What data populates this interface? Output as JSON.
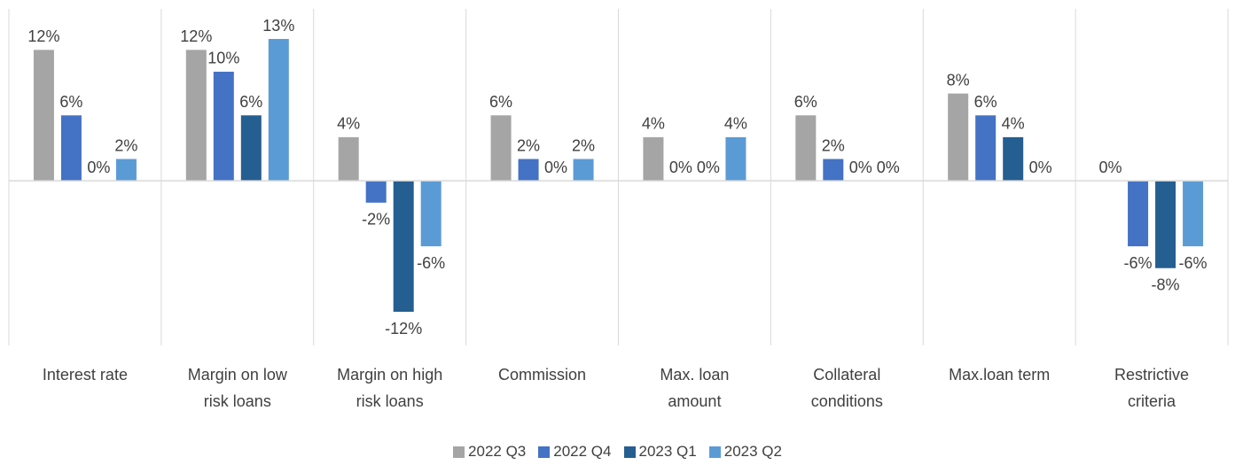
{
  "chart_data": {
    "type": "bar",
    "categories": [
      "Interest rate",
      "Margin on low risk loans",
      "Margin on high risk loans",
      "Commission",
      "Max. loan amount",
      "Collateral conditions",
      "Max.loan term",
      "Restrictive criteria"
    ],
    "series": [
      {
        "name": "2022 Q3",
        "color": "#a5a5a5",
        "values": [
          12,
          12,
          4,
          6,
          4,
          6,
          8,
          0
        ],
        "value_labels": [
          "12%",
          "12%",
          "4%",
          "6%",
          "4%",
          "6%",
          "8%",
          "0%"
        ]
      },
      {
        "name": "2022 Q4",
        "color": "#4472c4",
        "values": [
          6,
          10,
          -2,
          2,
          0,
          2,
          6,
          -6
        ],
        "value_labels": [
          "6%",
          "10%",
          "-2%",
          "2%",
          "0%",
          "2%",
          "6%",
          "-6%"
        ]
      },
      {
        "name": "2023 Q1",
        "color": "#255e91",
        "values": [
          0,
          6,
          -12,
          0,
          0,
          0,
          4,
          -8
        ],
        "value_labels": [
          "0%",
          "6%",
          "-12%",
          "0%",
          "0%",
          "0%",
          "4%",
          "-8%"
        ]
      },
      {
        "name": "2023 Q2",
        "color": "#5b9bd5",
        "values": [
          2,
          13,
          -6,
          2,
          4,
          0,
          0,
          -6
        ],
        "value_labels": [
          "2%",
          "13%",
          "-6%",
          "2%",
          "4%",
          "0%",
          "0%",
          "-6%"
        ]
      }
    ],
    "legend": "bottom"
  }
}
